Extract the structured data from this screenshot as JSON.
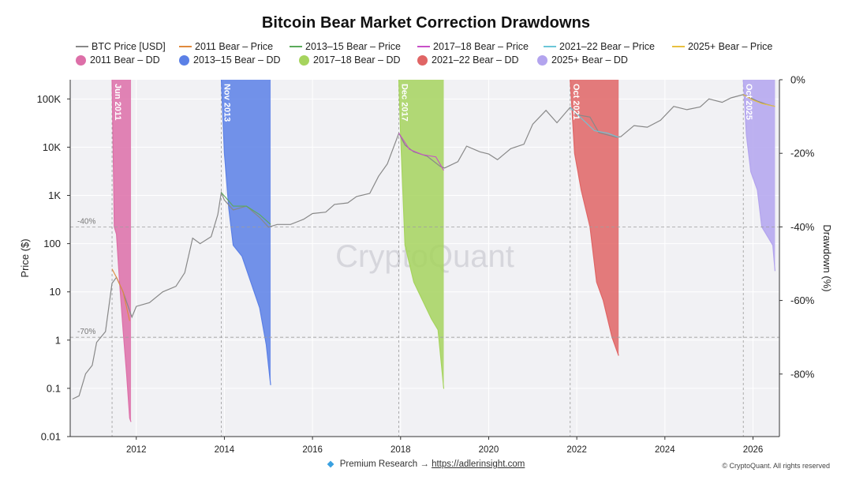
{
  "title": "Bitcoin Bear Market Correction Drawdowns",
  "legend": {
    "row1": [
      {
        "label": "BTC Price [USD]",
        "color": "#888888",
        "kind": "line"
      },
      {
        "label": "2011 Bear – Price",
        "color": "#e08a3c",
        "kind": "line"
      },
      {
        "label": "2013–15 Bear – Price",
        "color": "#5aaa5a",
        "kind": "line"
      },
      {
        "label": "2017–18 Bear – Price",
        "color": "#c850c8",
        "kind": "line"
      },
      {
        "label": "2021–22 Bear – Price",
        "color": "#6cc6d8",
        "kind": "line"
      },
      {
        "label": "2025+ Bear – Price",
        "color": "#e8c040",
        "kind": "line"
      }
    ],
    "row2": [
      {
        "label": "2011 Bear – DD",
        "color": "#dd6fa8",
        "kind": "dot"
      },
      {
        "label": "2013–15 Bear – DD",
        "color": "#5b80e6",
        "kind": "dot"
      },
      {
        "label": "2017–18 Bear – DD",
        "color": "#a6d45e",
        "kind": "dot"
      },
      {
        "label": "2021–22 Bear – DD",
        "color": "#e06565",
        "kind": "dot"
      },
      {
        "label": "2025+ Bear – DD",
        "color": "#b3a4ee",
        "kind": "dot"
      }
    ]
  },
  "watermark": "CryptoQuant",
  "footer": {
    "gem_icon": "diamond-icon",
    "prefix": "Premium Research →",
    "link": "https://adlerinsight.com",
    "copyright": "© CryptoQuant. All rights reserved"
  },
  "chart_data": {
    "type": "line",
    "xlim": [
      2010.5,
      2026.6
    ],
    "x_ticks": [
      2012,
      2014,
      2016,
      2018,
      2020,
      2022,
      2024,
      2026
    ],
    "x_tick_labels": [
      "2012",
      "2014",
      "2016",
      "2018",
      "2020",
      "2022",
      "2024",
      "2026"
    ],
    "y_left": {
      "label": "Price ($)",
      "scale": "log",
      "ylim": [
        0.01,
        250000
      ],
      "ticks": [
        0.01,
        0.1,
        1,
        10,
        100,
        1000,
        10000,
        100000
      ],
      "tick_labels": [
        "0.01",
        "0.1",
        "1",
        "10",
        "100",
        "1K",
        "10K",
        "100K"
      ]
    },
    "y_right": {
      "label": "Drawdown (%)",
      "ylim": [
        -97,
        0
      ],
      "ticks": [
        0,
        -20,
        -40,
        -60,
        -80
      ],
      "tick_labels": [
        "0%",
        "-20%",
        "-40%",
        "-60%",
        "-80%"
      ]
    },
    "reference_lines": [
      {
        "value": -40,
        "label": "-40%"
      },
      {
        "value": -70,
        "label": "-70%"
      }
    ],
    "grid": true,
    "legend_position": "top",
    "series": [
      {
        "name": "BTC Price [USD]",
        "axis": "left",
        "color": "#888888",
        "x": [
          2010.55,
          2010.7,
          2010.85,
          2011.0,
          2011.1,
          2011.3,
          2011.45,
          2011.55,
          2011.7,
          2011.9,
          2012.0,
          2012.3,
          2012.6,
          2012.9,
          2013.1,
          2013.28,
          2013.45,
          2013.7,
          2013.85,
          2013.93,
          2014.0,
          2014.2,
          2014.5,
          2014.8,
          2015.0,
          2015.2,
          2015.5,
          2015.8,
          2016.0,
          2016.3,
          2016.5,
          2016.8,
          2017.0,
          2017.3,
          2017.5,
          2017.7,
          2017.96,
          2018.1,
          2018.3,
          2018.6,
          2018.9,
          2019.0,
          2019.3,
          2019.5,
          2019.8,
          2020.0,
          2020.2,
          2020.5,
          2020.8,
          2021.0,
          2021.3,
          2021.55,
          2021.85,
          2022.0,
          2022.3,
          2022.5,
          2022.9,
          2023.0,
          2023.3,
          2023.6,
          2023.9,
          2024.2,
          2024.5,
          2024.8,
          2025.0,
          2025.3,
          2025.5,
          2025.78,
          2025.9,
          2026.1,
          2026.3,
          2026.5
        ],
        "y": [
          0.06,
          0.07,
          0.2,
          0.3,
          0.9,
          1.5,
          15,
          20,
          10,
          3,
          5,
          6,
          10,
          13,
          25,
          130,
          100,
          140,
          400,
          1150,
          800,
          500,
          600,
          350,
          220,
          250,
          250,
          320,
          420,
          450,
          650,
          700,
          950,
          1100,
          2500,
          4500,
          19500,
          11000,
          8000,
          6500,
          4000,
          3700,
          5000,
          10500,
          8000,
          7200,
          5500,
          9300,
          11500,
          30000,
          58000,
          32000,
          67000,
          47000,
          42000,
          20000,
          16000,
          16500,
          28000,
          26000,
          36000,
          70000,
          60000,
          68000,
          100000,
          85000,
          105000,
          123000,
          110000,
          90000,
          78000,
          70000
        ]
      },
      {
        "name": "2011 Bear – Price",
        "axis": "left",
        "color": "#e08a3c",
        "x": [
          2011.45,
          2011.55,
          2011.7,
          2011.85
        ],
        "y": [
          30,
          20,
          10,
          2.5
        ]
      },
      {
        "name": "2013–15 Bear – Price",
        "axis": "left",
        "color": "#5aaa5a",
        "x": [
          2013.93,
          2014.2,
          2014.5,
          2014.8,
          2015.05
        ],
        "y": [
          1150,
          600,
          600,
          400,
          250
        ]
      },
      {
        "name": "2017–18 Bear – Price",
        "axis": "left",
        "color": "#c850c8",
        "x": [
          2017.96,
          2018.2,
          2018.5,
          2018.8,
          2018.98
        ],
        "y": [
          19500,
          9000,
          7000,
          6300,
          3300
        ]
      },
      {
        "name": "2021–22 Bear – Price",
        "axis": "left",
        "color": "#6cc6d8",
        "x": [
          2021.85,
          2022.1,
          2022.4,
          2022.7,
          2022.95
        ],
        "y": [
          67000,
          40000,
          22000,
          19500,
          16000
        ]
      },
      {
        "name": "2025+ Bear – Price",
        "axis": "left",
        "color": "#e8c040",
        "x": [
          2025.78,
          2026.0,
          2026.2,
          2026.5
        ],
        "y": [
          123000,
          95000,
          80000,
          70000
        ]
      },
      {
        "name": "2011 Bear – DD",
        "axis": "right",
        "color": "#dd6fa8",
        "x": [
          2011.45,
          2011.5,
          2011.55,
          2011.62,
          2011.7,
          2011.78,
          2011.85,
          2011.88
        ],
        "y": [
          0,
          -40,
          -42,
          -55,
          -68,
          -80,
          -92,
          -93
        ]
      },
      {
        "name": "2013–15 Bear – DD",
        "axis": "right",
        "color": "#5b80e6",
        "x": [
          2013.93,
          2014.0,
          2014.1,
          2014.2,
          2014.4,
          2014.6,
          2014.8,
          2014.95,
          2015.05
        ],
        "y": [
          0,
          -20,
          -35,
          -45,
          -48,
          -55,
          -62,
          -72,
          -83
        ]
      },
      {
        "name": "2017–18 Bear – DD",
        "axis": "right",
        "color": "#a6d45e",
        "x": [
          2017.96,
          2018.0,
          2018.1,
          2018.3,
          2018.5,
          2018.7,
          2018.85,
          2018.98
        ],
        "y": [
          0,
          -15,
          -45,
          -55,
          -60,
          -65,
          -68,
          -84
        ]
      },
      {
        "name": "2021–22 Bear – DD",
        "axis": "right",
        "color": "#e06565",
        "x": [
          2021.85,
          2021.95,
          2022.1,
          2022.3,
          2022.45,
          2022.6,
          2022.8,
          2022.95
        ],
        "y": [
          0,
          -20,
          -30,
          -40,
          -55,
          -60,
          -70,
          -75
        ]
      },
      {
        "name": "2025+ Bear – DD",
        "axis": "right",
        "color": "#b3a4ee",
        "x": [
          2025.78,
          2025.85,
          2025.95,
          2026.1,
          2026.2,
          2026.35,
          2026.45,
          2026.5
        ],
        "y": [
          0,
          -15,
          -25,
          -30,
          -40,
          -43,
          -45,
          -52
        ]
      }
    ],
    "shaded_regions": [
      {
        "x0": 2011.45,
        "x1": 2011.88,
        "color": "#dd6fa8",
        "label": "Jun 2011"
      },
      {
        "x0": 2013.93,
        "x1": 2015.05,
        "color": "#5b80e6",
        "label": "Nov 2013"
      },
      {
        "x0": 2017.96,
        "x1": 2018.98,
        "color": "#a6d45e",
        "label": "Dec 2017"
      },
      {
        "x0": 2021.85,
        "x1": 2022.95,
        "color": "#e06565",
        "label": "Oct 2021"
      },
      {
        "x0": 2025.78,
        "x1": 2026.5,
        "color": "#b3a4ee",
        "label": "Oct 2025"
      }
    ]
  }
}
